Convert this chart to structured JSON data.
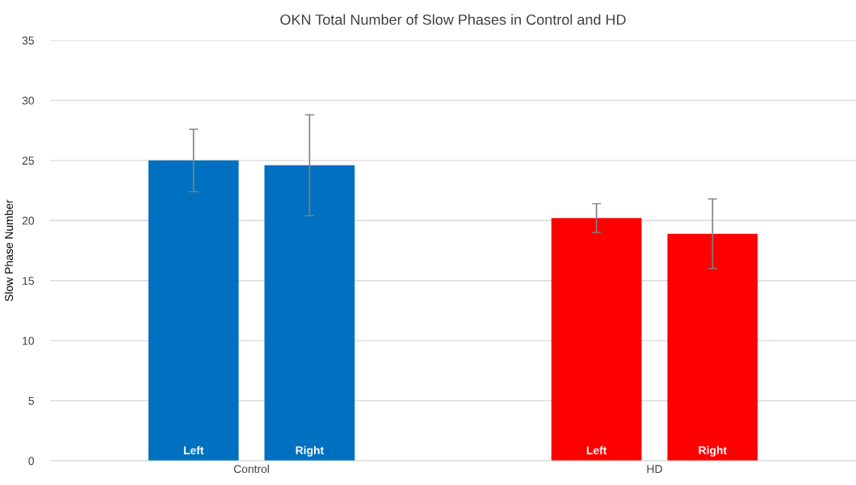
{
  "chart_data": {
    "type": "bar",
    "title": "OKN Total Number of Slow Phases in Control and HD",
    "ylabel": "Slow Phase Number",
    "categories": [
      "Control",
      "HD"
    ],
    "series": [
      {
        "name": "Left",
        "colors": [
          "#0070c0",
          "#ff0000"
        ],
        "values": [
          25.0,
          20.2
        ],
        "errors": [
          2.6,
          1.2
        ]
      },
      {
        "name": "Right",
        "colors": [
          "#0070c0",
          "#ff0000"
        ],
        "values": [
          24.6,
          18.9
        ],
        "errors": [
          4.2,
          2.9
        ]
      }
    ],
    "ylim": [
      0,
      35
    ],
    "yticks": [
      0,
      5,
      10,
      15,
      20,
      25,
      30,
      35
    ],
    "grid": "y",
    "legend": false
  }
}
